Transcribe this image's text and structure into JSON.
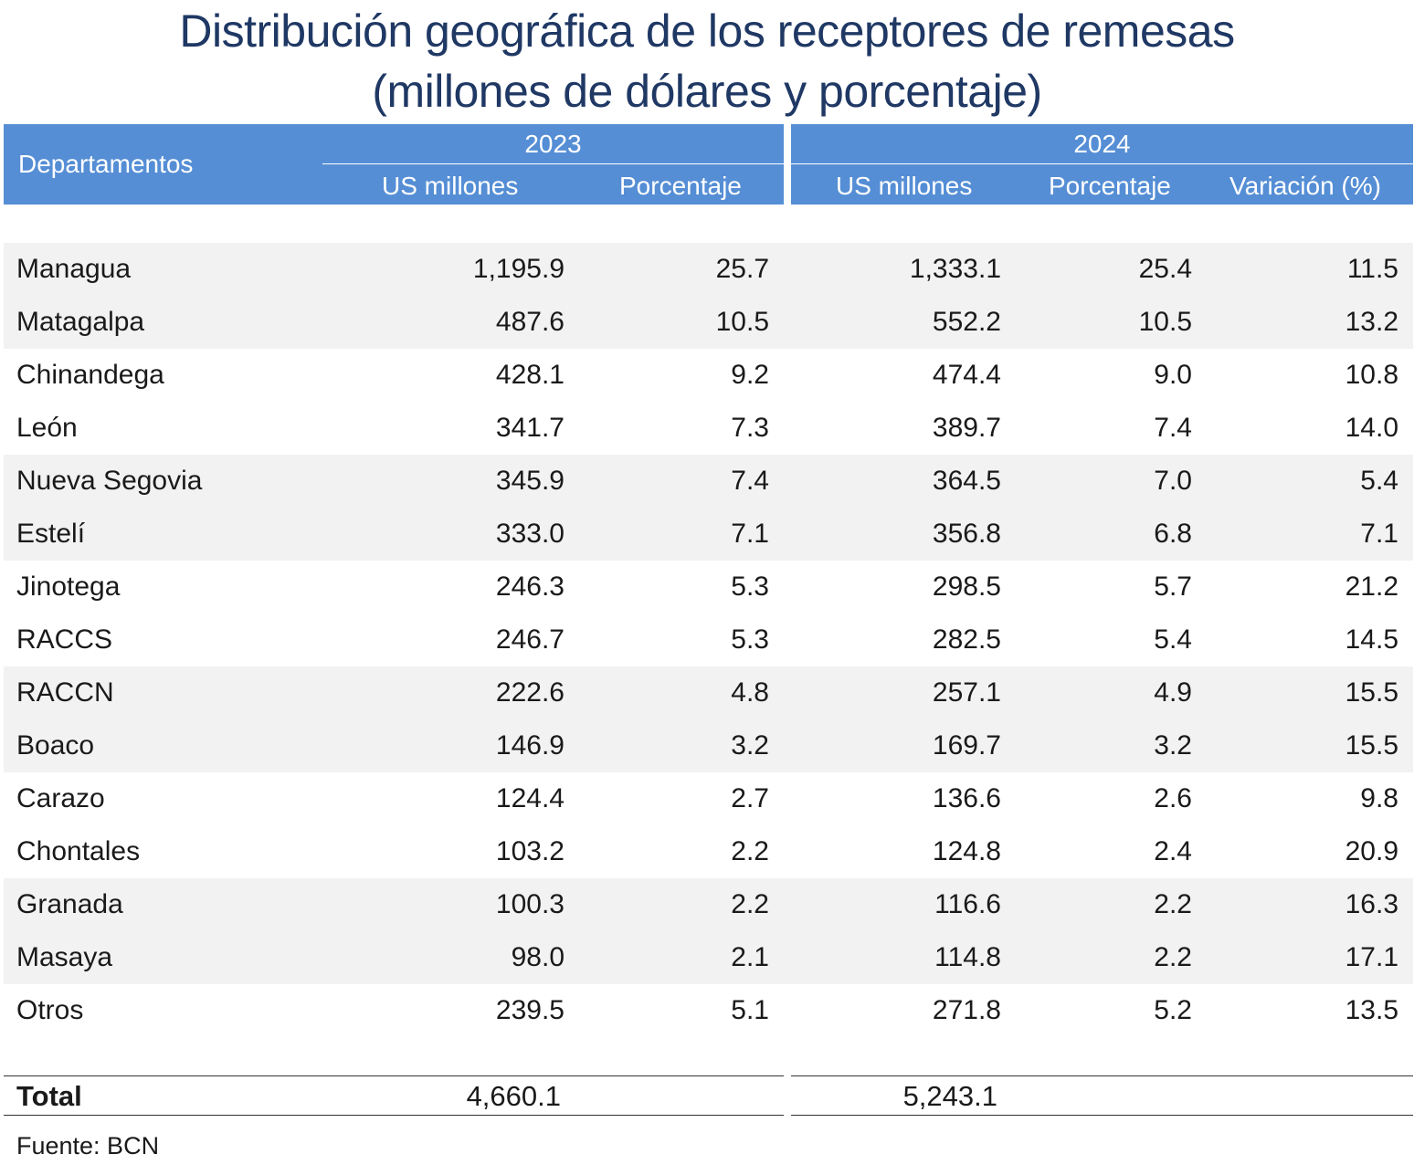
{
  "title": {
    "line1": "Distribución geográfica de los receptores de remesas",
    "line2": "(millones de dólares y porcentaje)"
  },
  "header": {
    "departamentos": "Departamentos",
    "year_2023": "2023",
    "year_2024": "2024",
    "us_millones_2023": "US millones",
    "porcentaje_2023": "Porcentaje",
    "us_millones_2024": "US millones",
    "porcentaje_2024": "Porcentaje",
    "variacion": "Variación (%)"
  },
  "rows": [
    {
      "name": "Managua",
      "us2023": "1,195.9",
      "pct2023": "25.7",
      "us2024": "1,333.1",
      "pct2024": "25.4",
      "var": "11.5"
    },
    {
      "name": "Matagalpa",
      "us2023": "487.6",
      "pct2023": "10.5",
      "us2024": "552.2",
      "pct2024": "10.5",
      "var": "13.2"
    },
    {
      "name": "Chinandega",
      "us2023": "428.1",
      "pct2023": "9.2",
      "us2024": "474.4",
      "pct2024": "9.0",
      "var": "10.8"
    },
    {
      "name": "León",
      "us2023": "341.7",
      "pct2023": "7.3",
      "us2024": "389.7",
      "pct2024": "7.4",
      "var": "14.0"
    },
    {
      "name": "Nueva Segovia",
      "us2023": "345.9",
      "pct2023": "7.4",
      "us2024": "364.5",
      "pct2024": "7.0",
      "var": "5.4"
    },
    {
      "name": "Estelí",
      "us2023": "333.0",
      "pct2023": "7.1",
      "us2024": "356.8",
      "pct2024": "6.8",
      "var": "7.1"
    },
    {
      "name": "Jinotega",
      "us2023": "246.3",
      "pct2023": "5.3",
      "us2024": "298.5",
      "pct2024": "5.7",
      "var": "21.2"
    },
    {
      "name": "RACCS",
      "us2023": "246.7",
      "pct2023": "5.3",
      "us2024": "282.5",
      "pct2024": "5.4",
      "var": "14.5"
    },
    {
      "name": "RACCN",
      "us2023": "222.6",
      "pct2023": "4.8",
      "us2024": "257.1",
      "pct2024": "4.9",
      "var": "15.5"
    },
    {
      "name": "Boaco",
      "us2023": "146.9",
      "pct2023": "3.2",
      "us2024": "169.7",
      "pct2024": "3.2",
      "var": "15.5"
    },
    {
      "name": "Carazo",
      "us2023": "124.4",
      "pct2023": "2.7",
      "us2024": "136.6",
      "pct2024": "2.6",
      "var": "9.8"
    },
    {
      "name": "Chontales",
      "us2023": "103.2",
      "pct2023": "2.2",
      "us2024": "124.8",
      "pct2024": "2.4",
      "var": "20.9"
    },
    {
      "name": "Granada",
      "us2023": "100.3",
      "pct2023": "2.2",
      "us2024": "116.6",
      "pct2024": "2.2",
      "var": "16.3"
    },
    {
      "name": "Masaya",
      "us2023": "98.0",
      "pct2023": "2.1",
      "us2024": "114.8",
      "pct2024": "2.2",
      "var": "17.1"
    },
    {
      "name": "Otros",
      "us2023": "239.5",
      "pct2023": "5.1",
      "us2024": "271.8",
      "pct2024": "5.2",
      "var": "13.5"
    }
  ],
  "total": {
    "label": "Total",
    "us2023": "4,660.1",
    "us2024": "5,243.1"
  },
  "source": "Fuente: BCN",
  "colors": {
    "title": "#1f3864",
    "header_bg": "#558ed5",
    "row_shade": "#f2f2f2"
  }
}
